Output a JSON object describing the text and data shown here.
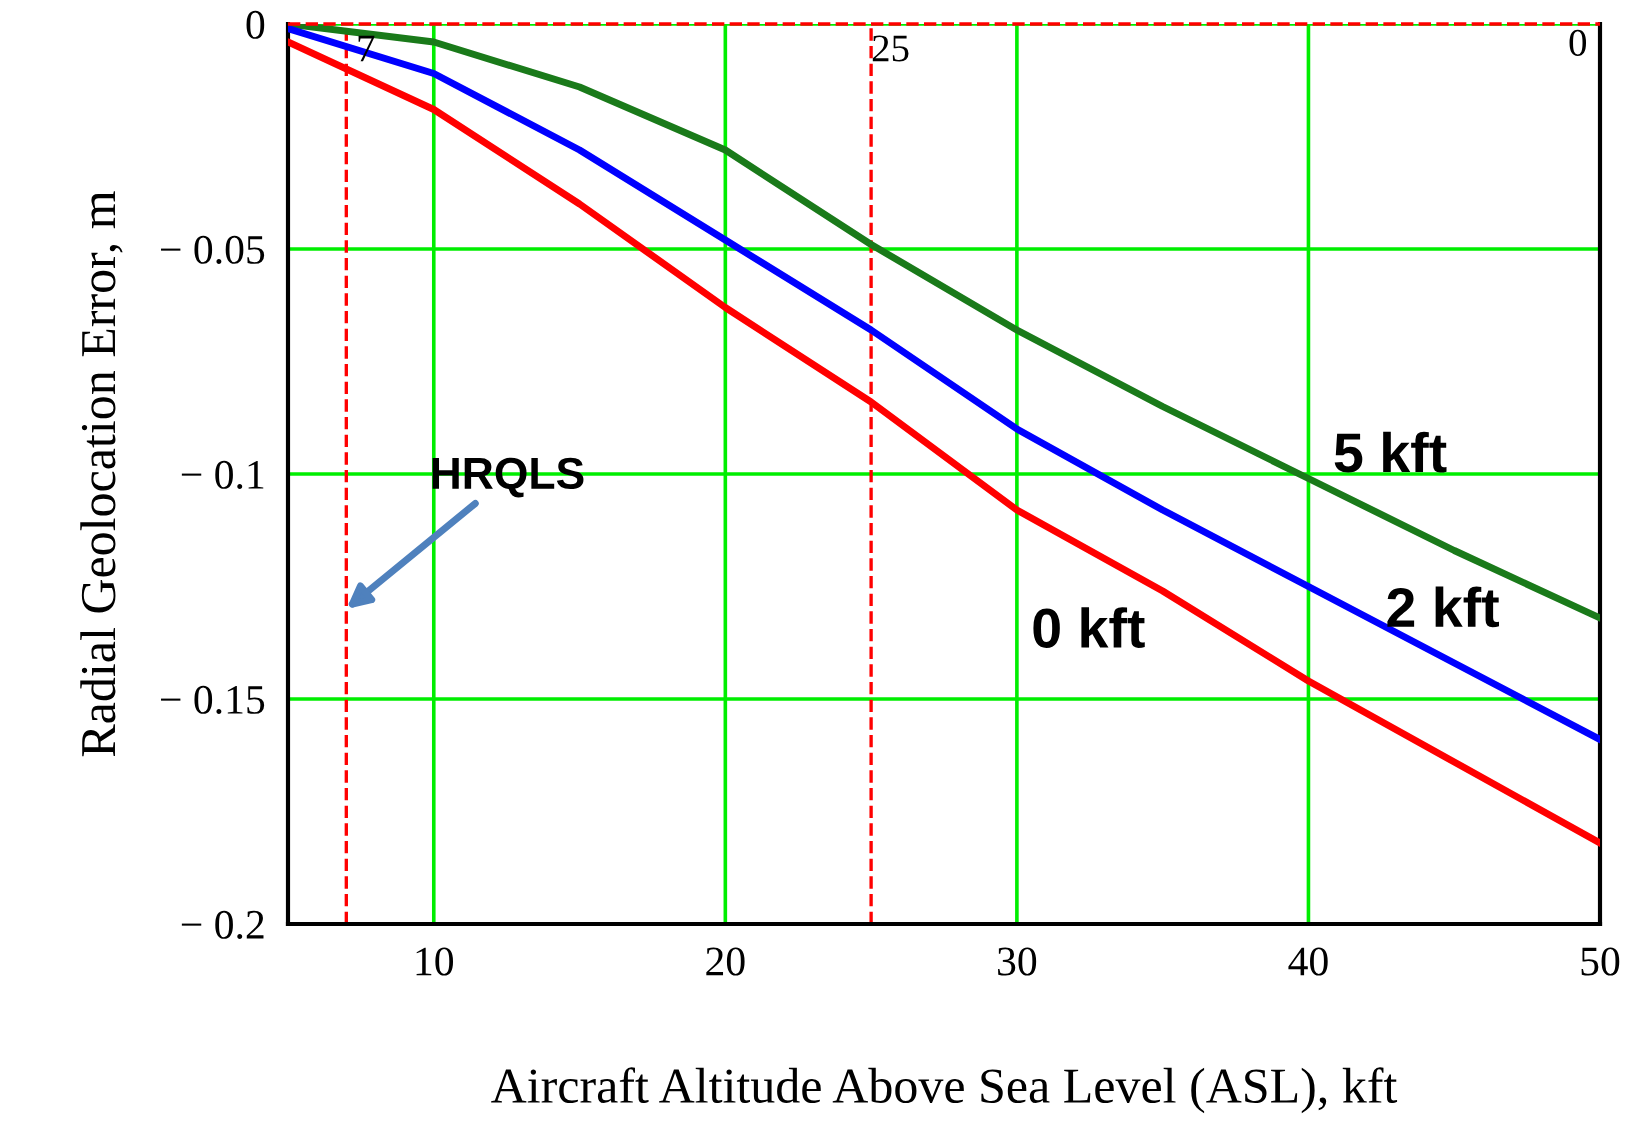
{
  "chart_data": {
    "type": "line",
    "xlabel": "Aircraft Altitude Above Sea Level (ASL), kft",
    "ylabel": "Radial Geolocation Error, m",
    "x": [
      5,
      10,
      15,
      20,
      25,
      30,
      35,
      40,
      45,
      50
    ],
    "series": [
      {
        "name": "5 kft",
        "color": "#1a7a1a",
        "values": [
          0,
          -0.004,
          -0.014,
          -0.028,
          -0.049,
          -0.068,
          -0.085,
          -0.101,
          -0.117,
          -0.132
        ]
      },
      {
        "name": "2 kft",
        "color": "#0000ff",
        "values": [
          -0.001,
          -0.011,
          -0.028,
          -0.048,
          -0.068,
          -0.09,
          -0.108,
          -0.125,
          -0.142,
          -0.159
        ]
      },
      {
        "name": "0 kft",
        "color": "#ff0000",
        "values": [
          -0.004,
          -0.019,
          -0.04,
          -0.063,
          -0.084,
          -0.108,
          -0.126,
          -0.146,
          -0.164,
          -0.182
        ]
      }
    ],
    "xlim": [
      5,
      50
    ],
    "ylim": [
      -0.2,
      0
    ],
    "xticks": [
      10,
      20,
      30,
      40,
      50
    ],
    "yticks": [
      {
        "value": 0,
        "label": "0"
      },
      {
        "value": -0.05,
        "label": "− 0.05"
      },
      {
        "value": -0.1,
        "label": "− 0.1"
      },
      {
        "value": -0.15,
        "label": "− 0.15"
      },
      {
        "value": -0.2,
        "label": "− 0.2"
      }
    ],
    "ref_lines": [
      {
        "axis": "x",
        "value": 7,
        "label": "7",
        "color": "#ff0000",
        "line_style": "dashed"
      },
      {
        "axis": "x",
        "value": 25,
        "label": "25",
        "color": "#ff0000",
        "line_style": "dashed"
      },
      {
        "axis": "y",
        "value": 0,
        "label": "0",
        "color": "#ff0000",
        "line_style": "dashed"
      }
    ],
    "annotations": [
      {
        "text": "HRQLS",
        "x": 7,
        "y": -0.13
      }
    ],
    "grid": true,
    "legend": false,
    "marker": "none",
    "line_style": "solid"
  }
}
